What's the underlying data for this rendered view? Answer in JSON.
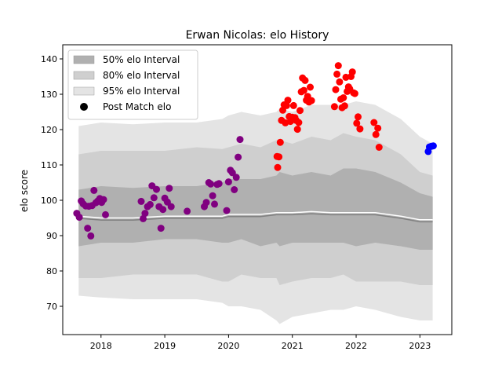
{
  "chart_data": {
    "type": "scatter",
    "title": "Erwan Nicolas: elo History",
    "xlabel": "",
    "ylabel": "elo score",
    "xlim": [
      2017.4,
      2023.5
    ],
    "ylim": [
      62,
      144
    ],
    "x_ticks": [
      {
        "value": 2018,
        "label": "2018"
      },
      {
        "value": 2019,
        "label": "2019"
      },
      {
        "value": 2020,
        "label": "2020"
      },
      {
        "value": 2021,
        "label": "2021"
      },
      {
        "value": 2022,
        "label": "2022"
      },
      {
        "value": 2023,
        "label": "2023"
      }
    ],
    "y_ticks": [
      70,
      80,
      90,
      100,
      110,
      120,
      130,
      140
    ],
    "grid": false,
    "legend_position": "top-left",
    "legend": [
      {
        "label": "50% elo Interval",
        "kind": "band",
        "color": "#b0b0b0"
      },
      {
        "label": "80% elo Interval",
        "kind": "band",
        "color": "#cfcfcf"
      },
      {
        "label": "95% elo Interval",
        "kind": "band",
        "color": "#e4e4e4"
      },
      {
        "label": "Post Match elo",
        "kind": "marker",
        "color": "#000000"
      }
    ],
    "bands": {
      "x": [
        2017.65,
        2018.0,
        2018.5,
        2019.0,
        2019.5,
        2019.9,
        2020.0,
        2020.2,
        2020.5,
        2020.75,
        2020.8,
        2021.0,
        2021.3,
        2021.6,
        2021.8,
        2022.0,
        2022.3,
        2022.7,
        2023.0,
        2023.2
      ],
      "p95_hi": [
        121,
        122,
        121.5,
        122,
        122,
        123,
        124,
        125,
        124,
        125,
        126,
        125,
        127,
        127,
        127,
        128,
        127,
        123,
        118,
        116
      ],
      "p80_hi": [
        113,
        114,
        114,
        114,
        115,
        114.5,
        115,
        116,
        115,
        117,
        117,
        116,
        118,
        117,
        119,
        118,
        117,
        113,
        108,
        107
      ],
      "p50_hi": [
        103,
        104,
        103.5,
        104,
        104,
        105,
        106,
        106,
        106,
        107,
        108,
        107,
        108,
        107,
        109,
        109,
        108,
        105,
        102,
        101
      ],
      "p50_lo": [
        87,
        88,
        88,
        89,
        89,
        88,
        88,
        89,
        87,
        88,
        87,
        88,
        88,
        88,
        88,
        87,
        88,
        87,
        86,
        86
      ],
      "p80_lo": [
        78,
        78,
        79,
        79,
        79,
        77,
        77,
        79,
        78,
        78,
        76,
        77,
        78,
        78,
        79,
        77,
        77,
        77,
        76,
        76
      ],
      "p95_lo": [
        73,
        72.5,
        72,
        72,
        72,
        71,
        70,
        70,
        69,
        66,
        65,
        67,
        68,
        69,
        69,
        70,
        69,
        67,
        66,
        66
      ],
      "mean": [
        95.5,
        95,
        95,
        95.5,
        95.5,
        95.5,
        96,
        96,
        96,
        96.5,
        96.5,
        96.5,
        96.8,
        96.5,
        96.5,
        96.5,
        96.5,
        95.5,
        94.5,
        94.5
      ]
    },
    "series": [
      {
        "color": "#800080",
        "x": [
          2017.62,
          2017.66,
          2017.69,
          2017.72,
          2017.76,
          2017.79,
          2017.81,
          2017.84,
          2017.86,
          2017.89,
          2017.92,
          2017.95,
          2017.98,
          2018.01,
          2018.04,
          2018.07,
          2018.63,
          2018.66,
          2018.69,
          2018.73,
          2018.77,
          2018.8,
          2018.83,
          2018.87,
          2018.91,
          2018.94,
          2018.97,
          2019.0,
          2019.04,
          2019.07,
          2019.1,
          2019.35,
          2019.62,
          2019.65,
          2019.69,
          2019.72,
          2019.75,
          2019.78,
          2019.82,
          2019.85,
          2019.97,
          2020.0,
          2020.03,
          2020.06,
          2020.09,
          2020.12,
          2020.15,
          2020.18
        ],
        "y": [
          96.3,
          95.2,
          99.8,
          99.0,
          98.4,
          92.1,
          98.3,
          89.9,
          98.5,
          102.8,
          99.3,
          99.8,
          100.5,
          99.4,
          100.2,
          95.9,
          99.7,
          94.8,
          96.3,
          98.2,
          98.8,
          104.1,
          100.7,
          103.1,
          98.2,
          92.1,
          97.4,
          100.6,
          99.5,
          103.4,
          98.2,
          96.9,
          98.2,
          99.4,
          105.0,
          104.6,
          101.3,
          98.9,
          104.5,
          104.7,
          97.1,
          105.2,
          108.5,
          107.8,
          103.0,
          106.5,
          112.2,
          117.2
        ]
      },
      {
        "color": "#ff0000",
        "x": [
          2020.76,
          2020.77,
          2020.79,
          2020.81,
          2020.83,
          2020.85,
          2020.87,
          2020.89,
          2020.91,
          2020.93,
          2020.95,
          2020.97,
          2021.0,
          2021.02,
          2021.04,
          2021.06,
          2021.08,
          2021.1,
          2021.12,
          2021.14,
          2021.16,
          2021.18,
          2021.2,
          2021.22,
          2021.24,
          2021.26,
          2021.28,
          2021.3,
          2021.66,
          2021.68,
          2021.7,
          2021.72,
          2021.74,
          2021.76,
          2021.78,
          2021.8,
          2021.82,
          2021.84,
          2021.86,
          2021.88,
          2021.9,
          2021.92,
          2021.94,
          2021.96,
          2021.98,
          2022.01,
          2022.03,
          2022.06,
          2022.28,
          2022.31,
          2022.34,
          2022.36
        ],
        "y": [
          112.4,
          109.3,
          112.3,
          116.4,
          122.6,
          125.5,
          127.0,
          121.9,
          126.8,
          128.3,
          123.7,
          122.3,
          123.5,
          126.8,
          123.4,
          122.6,
          120.1,
          122.0,
          125.4,
          130.7,
          134.6,
          131.1,
          133.9,
          128.3,
          129.4,
          127.8,
          132.0,
          128.2,
          126.5,
          131.3,
          135.7,
          138.1,
          133.5,
          128.6,
          126.2,
          129.0,
          126.7,
          134.8,
          130.8,
          132.1,
          131.5,
          135.0,
          136.3,
          130.4,
          130.2,
          121.8,
          123.6,
          120.2,
          122.0,
          118.6,
          120.4,
          115.0
        ]
      },
      {
        "color": "#0000ff",
        "x": [
          2023.13,
          2023.15,
          2023.18,
          2023.21
        ],
        "y": [
          113.8,
          115.1,
          115.3,
          115.4
        ]
      }
    ]
  }
}
